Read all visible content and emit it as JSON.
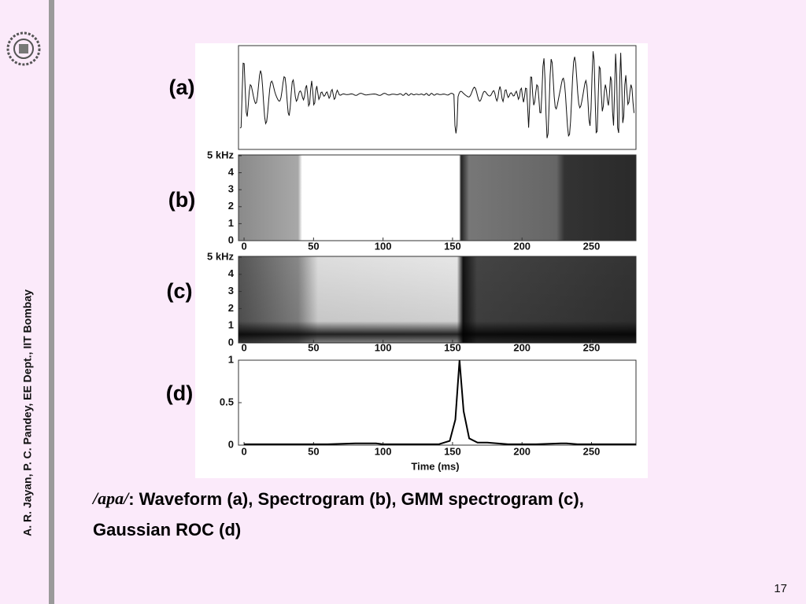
{
  "sidebar": {
    "author": "A. R. Jayan, P. C. Pandey, EE Dept.,  IIT Bombay"
  },
  "figure": {
    "panel_labels": [
      "(a)",
      "(b)",
      "(c)",
      "(d)"
    ],
    "xlim": [
      -4,
      282
    ],
    "xticks": [
      0,
      50,
      100,
      150,
      200,
      250
    ],
    "spectrogram_ylim": [
      0,
      5
    ],
    "spectrogram_yticks": [
      0,
      1,
      2,
      3,
      4,
      {
        "value": 5,
        "label": "5 kHz"
      }
    ],
    "roc": {
      "ylim": [
        0,
        1
      ],
      "yticks": [
        0,
        0.5,
        1
      ],
      "x": [
        0,
        20,
        40,
        60,
        80,
        95,
        100,
        120,
        140,
        148,
        152,
        155,
        158,
        162,
        168,
        175,
        190,
        210,
        228,
        232,
        240,
        260,
        282
      ],
      "values": [
        0.01,
        0.01,
        0.01,
        0.01,
        0.02,
        0.02,
        0.01,
        0.01,
        0.01,
        0.05,
        0.3,
        1,
        0.4,
        0.08,
        0.03,
        0.03,
        0.01,
        0.01,
        0.02,
        0.02,
        0.01,
        0.01,
        0.01
      ]
    },
    "x_label": "Time (ms)"
  },
  "caption": {
    "term": "/apa/",
    "line1": ": Waveform (a),  Spectrogram (b), GMM spectrogram (c),",
    "line2": "Gaussian ROC (d)"
  },
  "page_number": "17"
}
